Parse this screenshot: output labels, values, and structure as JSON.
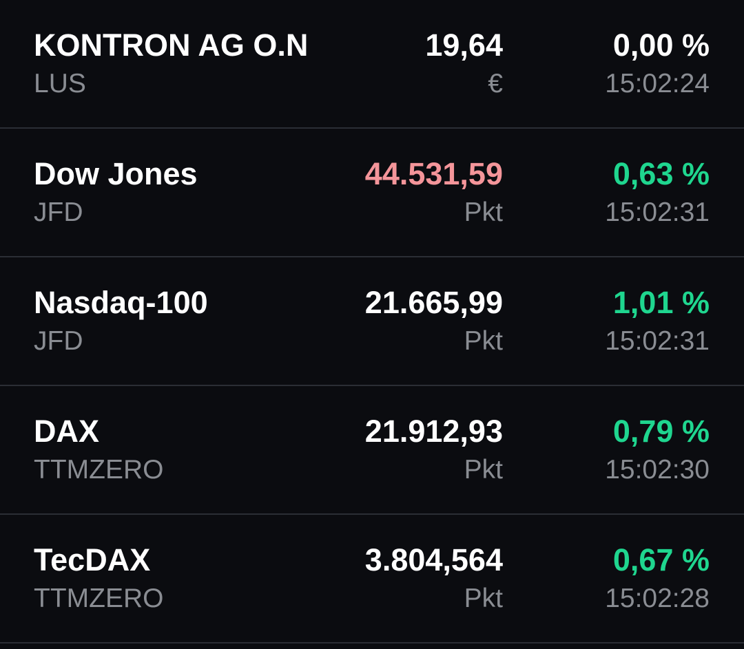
{
  "colors": {
    "background": "#0b0c10",
    "divider": "#2b2e35",
    "text_primary": "#ffffff",
    "text_secondary": "#8a8d93",
    "positive": "#1fd68f",
    "negative": "#f4959a"
  },
  "watchlist": {
    "items": [
      {
        "name": "KONTRON AG O.N",
        "exchange": "LUS",
        "price": "19,64",
        "price_color": "#ffffff",
        "unit": "€",
        "change": "0,00 %",
        "change_color": "#ffffff",
        "time": "15:02:24"
      },
      {
        "name": "Dow Jones",
        "exchange": "JFD",
        "price": "44.531,59",
        "price_color": "#f4959a",
        "unit": "Pkt",
        "change": "0,63 %",
        "change_color": "#1fd68f",
        "time": "15:02:31"
      },
      {
        "name": "Nasdaq-100",
        "exchange": "JFD",
        "price": "21.665,99",
        "price_color": "#ffffff",
        "unit": "Pkt",
        "change": "1,01 %",
        "change_color": "#1fd68f",
        "time": "15:02:31"
      },
      {
        "name": "DAX",
        "exchange": "TTMZERO",
        "price": "21.912,93",
        "price_color": "#ffffff",
        "unit": "Pkt",
        "change": "0,79 %",
        "change_color": "#1fd68f",
        "time": "15:02:30"
      },
      {
        "name": "TecDAX",
        "exchange": "TTMZERO",
        "price": "3.804,564",
        "price_color": "#ffffff",
        "unit": "Pkt",
        "change": "0,67 %",
        "change_color": "#1fd68f",
        "time": "15:02:28"
      }
    ]
  }
}
